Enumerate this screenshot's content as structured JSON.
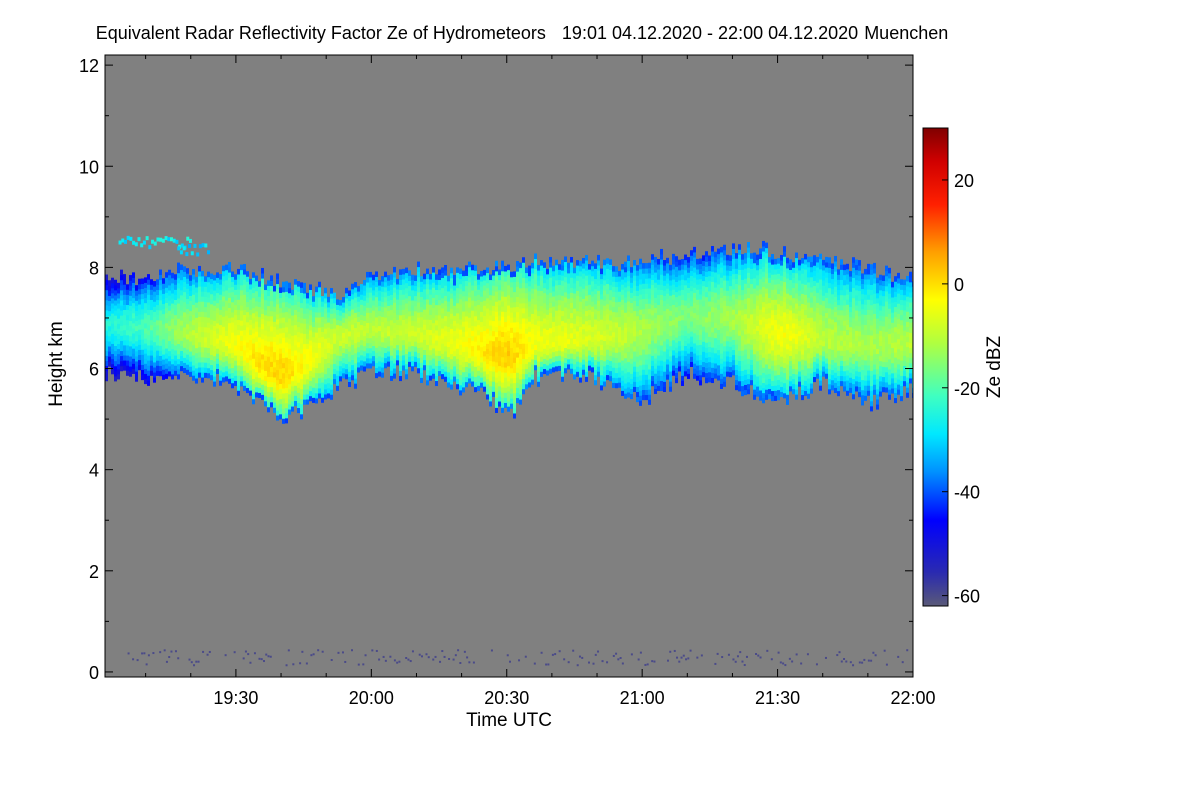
{
  "chart_data": {
    "type": "heatmap",
    "title": "Equivalent Radar Reflectivity Factor Ze of Hydrometeors",
    "period": "19:01 04.12.2020 - 22:00 04.12.2020",
    "location": "Muenchen",
    "xlabel": "Time UTC",
    "ylabel": "Height km",
    "colorbar_label": "Ze dBZ",
    "x_range_minutes": [
      1141,
      1320
    ],
    "x_ticks": [
      {
        "label": "19:30",
        "minute": 1170
      },
      {
        "label": "20:00",
        "minute": 1200
      },
      {
        "label": "20:30",
        "minute": 1230
      },
      {
        "label": "21:00",
        "minute": 1260
      },
      {
        "label": "21:30",
        "minute": 1290
      },
      {
        "label": "22:00",
        "minute": 1320
      }
    ],
    "y_range": [
      -0.1,
      12.2
    ],
    "y_ticks": [
      0,
      2,
      4,
      6,
      8,
      10,
      12
    ],
    "color_range": [
      -62,
      30
    ],
    "colorbar_ticks": [
      20,
      0,
      -20,
      -40,
      -60
    ],
    "colors": {
      "background": "#808080",
      "min": "#5a5a78"
    },
    "cloud_layer": {
      "description": "main ice cloud layer",
      "samples": [
        {
          "minute": 1141,
          "base": 5.9,
          "top": 7.7,
          "peak_dbz": -25,
          "peak_height": 6.8
        },
        {
          "minute": 1150,
          "base": 5.8,
          "top": 7.8,
          "peak_dbz": -20,
          "peak_height": 6.8
        },
        {
          "minute": 1160,
          "base": 5.9,
          "top": 7.9,
          "peak_dbz": -10,
          "peak_height": 6.6
        },
        {
          "minute": 1170,
          "base": 5.6,
          "top": 7.9,
          "peak_dbz": -4,
          "peak_height": 6.4
        },
        {
          "minute": 1175,
          "base": 5.3,
          "top": 7.8,
          "peak_dbz": 0,
          "peak_height": 6.0
        },
        {
          "minute": 1180,
          "base": 5.0,
          "top": 7.7,
          "peak_dbz": 1,
          "peak_height": 5.8
        },
        {
          "minute": 1185,
          "base": 5.2,
          "top": 7.6,
          "peak_dbz": -3,
          "peak_height": 6.0
        },
        {
          "minute": 1192,
          "base": 5.6,
          "top": 7.4,
          "peak_dbz": -8,
          "peak_height": 6.6
        },
        {
          "minute": 1200,
          "base": 5.9,
          "top": 7.8,
          "peak_dbz": -10,
          "peak_height": 6.7
        },
        {
          "minute": 1210,
          "base": 5.9,
          "top": 7.9,
          "peak_dbz": -8,
          "peak_height": 6.6
        },
        {
          "minute": 1220,
          "base": 5.6,
          "top": 7.9,
          "peak_dbz": -4,
          "peak_height": 6.4
        },
        {
          "minute": 1226,
          "base": 5.4,
          "top": 8.0,
          "peak_dbz": 0,
          "peak_height": 6.2
        },
        {
          "minute": 1230,
          "base": 5.0,
          "top": 8.0,
          "peak_dbz": 2,
          "peak_height": 6.2
        },
        {
          "minute": 1236,
          "base": 5.8,
          "top": 8.1,
          "peak_dbz": -4,
          "peak_height": 6.4
        },
        {
          "minute": 1245,
          "base": 5.9,
          "top": 8.1,
          "peak_dbz": -6,
          "peak_height": 6.5
        },
        {
          "minute": 1255,
          "base": 5.6,
          "top": 8.0,
          "peak_dbz": -9,
          "peak_height": 6.6
        },
        {
          "minute": 1260,
          "base": 5.4,
          "top": 8.1,
          "peak_dbz": -12,
          "peak_height": 6.7
        },
        {
          "minute": 1270,
          "base": 5.9,
          "top": 8.2,
          "peak_dbz": -16,
          "peak_height": 7.0
        },
        {
          "minute": 1280,
          "base": 5.7,
          "top": 8.3,
          "peak_dbz": -12,
          "peak_height": 6.9
        },
        {
          "minute": 1288,
          "base": 5.4,
          "top": 8.3,
          "peak_dbz": -5,
          "peak_height": 6.7
        },
        {
          "minute": 1292,
          "base": 5.4,
          "top": 8.2,
          "peak_dbz": -4,
          "peak_height": 6.6
        },
        {
          "minute": 1300,
          "base": 5.7,
          "top": 8.1,
          "peak_dbz": -10,
          "peak_height": 6.5
        },
        {
          "minute": 1310,
          "base": 5.3,
          "top": 7.9,
          "peak_dbz": -12,
          "peak_height": 6.4
        },
        {
          "minute": 1320,
          "base": 5.6,
          "top": 7.7,
          "peak_dbz": -10,
          "peak_height": 6.4
        }
      ]
    },
    "upper_wisps": [
      {
        "minute_start": 1144,
        "minute_end": 1160,
        "height": 8.45,
        "dbz": -28
      },
      {
        "minute_start": 1157,
        "minute_end": 1164,
        "height": 8.3,
        "dbz": -30
      }
    ],
    "ground_clutter": {
      "height_min": 0.1,
      "height_max": 0.4,
      "dbz": -60
    }
  }
}
